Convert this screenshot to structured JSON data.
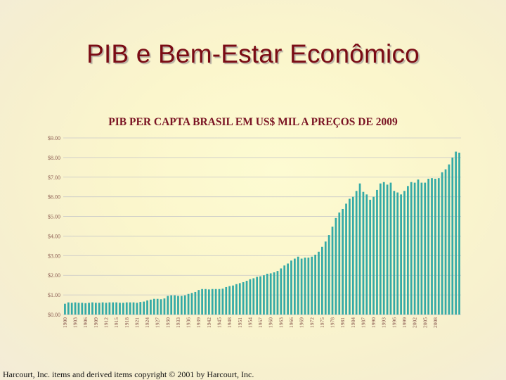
{
  "slide": {
    "title": "PIB e Bem-Estar Econômico",
    "footer": "Harcourt, Inc. items and derived items copyright © 2001 by Harcourt, Inc."
  },
  "colors": {
    "bar": "#34aaa6",
    "title": "#7a0b14",
    "chart_title": "#7a1424",
    "grid": "#c8c8c8",
    "axis_text": "#8a5a50"
  },
  "chart_data": {
    "type": "bar",
    "title": "PIB PER CAPTA BRASIL EM US$ MIL A PREÇOS DE 2009",
    "xlabel": "",
    "ylabel": "",
    "ylim": [
      0,
      9
    ],
    "grid": true,
    "legend": "none",
    "y_tick_labels": [
      "$0.00",
      "$1.00",
      "$2.00",
      "$3.00",
      "$4.00",
      "$5.00",
      "$6.00",
      "$7.00",
      "$8.00",
      "$9.00"
    ],
    "x_tick_labels": [
      "1900",
      "1903",
      "1906",
      "1909",
      "1912",
      "1915",
      "1918",
      "1921",
      "1924",
      "1927",
      "1930",
      "1933",
      "1936",
      "1939",
      "1942",
      "1945",
      "1948",
      "1951",
      "1954",
      "1957",
      "1960",
      "1963",
      "1966",
      "1969",
      "1972",
      "1975",
      "1978",
      "1981",
      "1984",
      "1987",
      "1990",
      "1993",
      "1996",
      "1999",
      "2002",
      "2005",
      "2008"
    ],
    "x_start": 1900,
    "x_end": 2009,
    "values": [
      0.55,
      0.62,
      0.6,
      0.62,
      0.6,
      0.6,
      0.58,
      0.6,
      0.62,
      0.6,
      0.6,
      0.62,
      0.6,
      0.62,
      0.62,
      0.62,
      0.6,
      0.6,
      0.62,
      0.62,
      0.62,
      0.6,
      0.64,
      0.66,
      0.72,
      0.76,
      0.8,
      0.8,
      0.78,
      0.82,
      0.95,
      0.98,
      0.98,
      0.95,
      0.95,
      0.98,
      1.05,
      1.1,
      1.15,
      1.25,
      1.3,
      1.3,
      1.28,
      1.3,
      1.3,
      1.3,
      1.32,
      1.4,
      1.45,
      1.48,
      1.55,
      1.6,
      1.65,
      1.72,
      1.8,
      1.85,
      1.92,
      1.95,
      2.0,
      2.08,
      2.1,
      2.15,
      2.22,
      2.35,
      2.5,
      2.6,
      2.75,
      2.85,
      2.95,
      2.85,
      2.9,
      2.9,
      2.95,
      3.05,
      3.2,
      3.45,
      3.72,
      4.05,
      4.48,
      4.92,
      5.2,
      5.38,
      5.65,
      5.9,
      6.0,
      6.3,
      6.68,
      6.25,
      6.12,
      5.85,
      6.0,
      6.35,
      6.68,
      6.75,
      6.62,
      6.72,
      6.3,
      6.22,
      6.12,
      6.3,
      6.55,
      6.75,
      6.72,
      6.88,
      6.72,
      6.72,
      6.92,
      6.95,
      6.92,
      6.95,
      7.25,
      7.4,
      7.65,
      8.0,
      8.3,
      8.25
    ]
  }
}
